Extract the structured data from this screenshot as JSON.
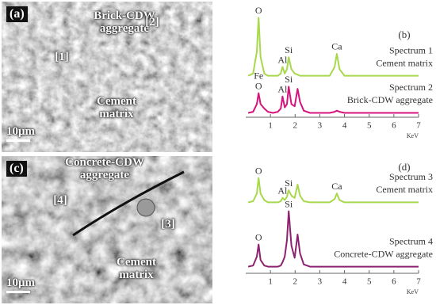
{
  "images": [
    {
      "panel": "(a)",
      "labels": [
        {
          "text": "Brick-CDW aggregate"
        },
        {
          "text": "[2]"
        },
        {
          "text": "[1]"
        },
        {
          "text": "Cement matrix"
        },
        {
          "text": "10μm"
        }
      ]
    },
    {
      "panel": "(c)",
      "labels": [
        {
          "text": "Concrete-CDW aggregate"
        },
        {
          "text": "[4]"
        },
        {
          "text": "[3]"
        },
        {
          "text": "Cement matrix"
        },
        {
          "text": "10μm"
        }
      ]
    }
  ],
  "chart_data": [
    {
      "type": "line",
      "panel": "(b)",
      "xlabel": "KeV",
      "xlim": [
        0,
        7
      ],
      "xticks": [
        1,
        2,
        3,
        4,
        5,
        6,
        7
      ],
      "ylim": [
        0,
        100
      ],
      "x": [
        0.1,
        0.3,
        0.45,
        0.52,
        0.6,
        0.75,
        0.9,
        1.1,
        1.3,
        1.42,
        1.49,
        1.58,
        1.67,
        1.74,
        1.85,
        1.98,
        2.1,
        2.2,
        2.35,
        2.6,
        3.0,
        3.4,
        3.6,
        3.69,
        3.8,
        4.0,
        4.5,
        5.0,
        5.5,
        6.0,
        6.5,
        7.0
      ],
      "series": [
        {
          "name": "Spectrum 1",
          "label": "Cement matrix",
          "color": "#a8d84c",
          "values": [
            38,
            40,
            60,
            91,
            55,
            40,
            38,
            38,
            38,
            40,
            46,
            40,
            44,
            55,
            44,
            40,
            39,
            38,
            38,
            38,
            38,
            38,
            46,
            58,
            44,
            38,
            38,
            38,
            38,
            38,
            38,
            38
          ]
        },
        {
          "name": "Spectrum 2",
          "label": "Brick-CDW aggregate",
          "color": "#d6147c",
          "values": [
            4,
            5,
            12,
            22,
            12,
            8,
            5,
            4,
            5,
            8,
            19,
            9,
            12,
            28,
            12,
            10,
            26,
            14,
            6,
            4,
            4,
            4,
            5,
            6,
            5,
            4,
            4,
            4,
            4,
            4,
            4,
            4
          ]
        }
      ],
      "annotations": [
        {
          "text": "O",
          "x": 0.52,
          "series": 0
        },
        {
          "text": "Al",
          "x": 1.49,
          "series": 0
        },
        {
          "text": "Si",
          "x": 1.74,
          "series": 0
        },
        {
          "text": "Ca",
          "x": 3.69,
          "series": 0
        },
        {
          "text": "O",
          "x": 0.52,
          "series": 1
        },
        {
          "text": "Fe",
          "x": 0.52,
          "series": 1
        },
        {
          "text": "Al",
          "x": 1.49,
          "series": 1
        },
        {
          "text": "Si",
          "x": 1.74,
          "series": 1
        }
      ]
    },
    {
      "type": "line",
      "panel": "(d)",
      "xlabel": "KeV",
      "xlim": [
        0,
        7
      ],
      "xticks": [
        1,
        2,
        3,
        4,
        5,
        6,
        7
      ],
      "ylim": [
        0,
        100
      ],
      "x": [
        0.1,
        0.3,
        0.45,
        0.52,
        0.6,
        0.75,
        0.9,
        1.1,
        1.3,
        1.42,
        1.49,
        1.58,
        1.67,
        1.74,
        1.85,
        1.98,
        2.1,
        2.2,
        2.35,
        2.6,
        3.0,
        3.4,
        3.6,
        3.69,
        3.8,
        4.0,
        4.5,
        5.0,
        5.5,
        6.0,
        6.5,
        7.0
      ],
      "series": [
        {
          "name": "Spectrum 3",
          "label": "Cement matrix",
          "color": "#a8d84c",
          "values": [
            64,
            65,
            72,
            86,
            72,
            66,
            64,
            64,
            64,
            65,
            68,
            66,
            69,
            75,
            70,
            68,
            80,
            70,
            65,
            64,
            64,
            64,
            67,
            72,
            66,
            64,
            64,
            64,
            64,
            64,
            64,
            64
          ]
        },
        {
          "name": "Spectrum 4",
          "label": "Concrete-CDW aggregate",
          "color": "#8e2170",
          "values": [
            6,
            7,
            15,
            26,
            12,
            7,
            6,
            6,
            6,
            7,
            10,
            15,
            30,
            56,
            25,
            14,
            35,
            18,
            8,
            6,
            6,
            6,
            6,
            6,
            6,
            6,
            6,
            6,
            6,
            6,
            6,
            6
          ]
        }
      ],
      "annotations": [
        {
          "text": "O",
          "x": 0.52,
          "series": 0
        },
        {
          "text": "Al",
          "x": 1.49,
          "series": 0
        },
        {
          "text": "Si",
          "x": 1.74,
          "series": 0
        },
        {
          "text": "Ca",
          "x": 3.69,
          "series": 0
        },
        {
          "text": "O",
          "x": 0.52,
          "series": 1
        },
        {
          "text": "Si",
          "x": 1.74,
          "series": 1
        }
      ]
    }
  ]
}
